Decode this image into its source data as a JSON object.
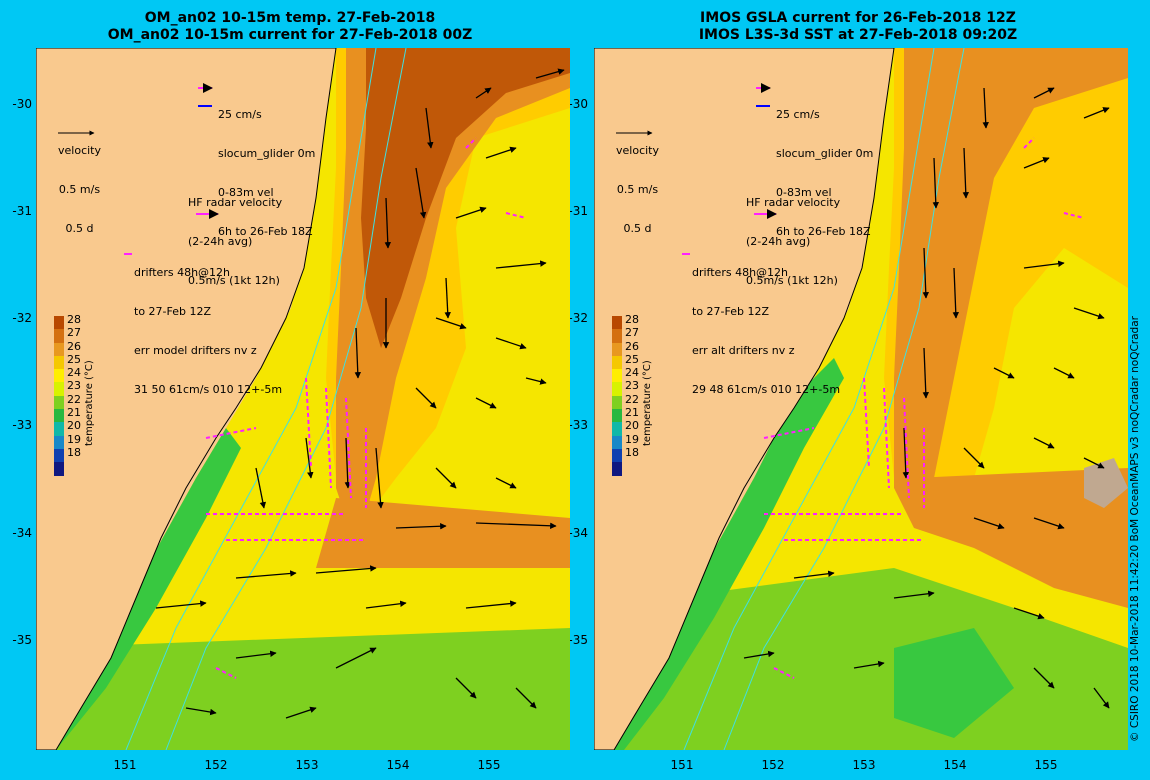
{
  "left_panel": {
    "title_line1": "OM_an02 10-15m temp. 27-Feb-2018",
    "title_line2": "OM_an02 10-15m current for 27-Feb-2018 00Z",
    "glider_legend": [
      "25 cm/s",
      "slocum_glider 0m",
      "0-83m vel",
      "6h to 26-Feb 18Z"
    ],
    "velocity_legend": [
      "velocity",
      "0.5 m/s",
      "0.5 d"
    ],
    "hf_radar_legend": [
      "HF radar velocity",
      "(2-24h avg)",
      "0.5m/s (1kt 12h)"
    ],
    "drifters_legend": [
      "drifters 48h@12h",
      "to 27-Feb 12Z",
      "err model drifters nv z",
      "31 50 61cm/s 010 12+-5m"
    ]
  },
  "right_panel": {
    "title_line1": "IMOS GSLA current for 26-Feb-2018 12Z",
    "title_line2": "IMOS L3S-3d SST at 27-Feb-2018 09:20Z",
    "glider_legend": [
      "25 cm/s",
      "slocum_glider 0m",
      "0-83m vel",
      "6h to 26-Feb 18Z"
    ],
    "velocity_legend": [
      "velocity",
      "0.5 m/s",
      "0.5 d"
    ],
    "hf_radar_legend": [
      "HF radar velocity",
      "(2-24h avg)",
      "0.5m/s (1kt 12h)"
    ],
    "drifters_legend": [
      "drifters 48h@12h",
      "to 27-Feb 12Z",
      "err alt drifters nv z",
      "29 48 61cm/s 010 12+-5m"
    ]
  },
  "axes": {
    "lat_labels": [
      "-30",
      "-31",
      "-32",
      "-33",
      "-34",
      "-35"
    ],
    "lon_labels": [
      "151",
      "152",
      "153",
      "154",
      "155"
    ]
  },
  "colorbar": {
    "title": "temperature (°C)",
    "labels": [
      "28",
      "27",
      "26",
      "25",
      "24",
      "23",
      "22",
      "21",
      "20",
      "19",
      "18"
    ],
    "colors": [
      "#b84800",
      "#d47010",
      "#e89820",
      "#f5c800",
      "#ffee00",
      "#d8f200",
      "#7ed020",
      "#28b840",
      "#10b8a8",
      "#1888c8",
      "#1040b0",
      "#101880"
    ]
  },
  "credit": "© CSIRO 2018   10-Mar-2018 11:42:20 BoM OceanMAPS v3 noQCradar noQCradar",
  "colors": {
    "background": "#00c8f4",
    "land": "#f9c98e",
    "warm_core": "#c05808",
    "warm": "#e89020",
    "mid": "#ffcc00",
    "cool": "#e8f000",
    "coastal": "#38c840",
    "isobath": "#40e0e0",
    "drifter": "#ff20ff"
  }
}
